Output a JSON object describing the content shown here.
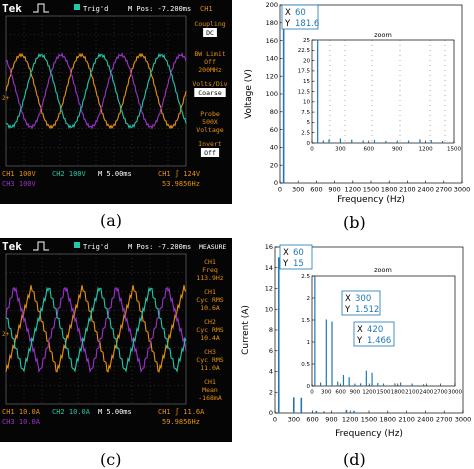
{
  "panels": {
    "a": {
      "caption": "(a)",
      "header": {
        "brand": "Tek",
        "status": "Trig'd",
        "mpos": "M Pos: -7.200ms",
        "channel": "CH1"
      },
      "side_menu": [
        {
          "label": "Coupling",
          "value": "DC"
        },
        {
          "label": "BW Limit",
          "value": "Off",
          "extra": "200MHz"
        },
        {
          "label": "Volts/Div",
          "value": "Coarse"
        },
        {
          "label": "Probe",
          "value": "500X",
          "extra": "Voltage"
        },
        {
          "label": "Invert",
          "value": "Off"
        }
      ],
      "footer": {
        "ch1": "CH1  100V",
        "ch2": "CH2  100V",
        "ch3": "CH3  100V",
        "time": "M 5.00ms",
        "trig": "CH1 ∫ 124V",
        "freq": "53.9856Hz"
      },
      "marker": "2+"
    },
    "b": {
      "caption": "(b)",
      "cursor": {
        "x_label": "X",
        "x_value": "60",
        "y_label": "Y",
        "y_value": "181.6"
      },
      "zoom_label": "zoom"
    },
    "c": {
      "caption": "(c)",
      "header": {
        "brand": "Tek",
        "status": "Trig'd",
        "mpos": "M Pos: -7.200ms",
        "title": "MEASURE"
      },
      "side_menu": [
        {
          "label": "CH1",
          "value": "Freq",
          "extra": "113.9Hz"
        },
        {
          "label": "CH1",
          "value": "Cyc RMS",
          "extra": "10.6A"
        },
        {
          "label": "CH2",
          "value": "Cyc RMS",
          "extra": "10.4A"
        },
        {
          "label": "CH3",
          "value": "Cyc RMS",
          "extra": "11.0A"
        },
        {
          "label": "CH1",
          "value": "Mean",
          "extra": "-168mA"
        }
      ],
      "footer": {
        "ch1": "CH1  10.0A",
        "ch2": "CH2  10.0A",
        "ch3": "CH3  10.0A",
        "time": "M 5.00ms",
        "trig": "CH1 ∫ 11.6A",
        "freq": "59.9856Hz"
      },
      "marker": "2+"
    },
    "d": {
      "caption": "(d)",
      "cursors": [
        {
          "x_label": "X",
          "x_value": "60",
          "y_label": "Y",
          "y_value": "15"
        },
        {
          "x_label": "X",
          "x_value": "300",
          "y_label": "Y",
          "y_value": "1.512"
        },
        {
          "x_label": "X",
          "x_value": "420",
          "y_label": "Y",
          "y_value": "1.466"
        }
      ],
      "zoom_label": "zoom"
    }
  },
  "colors": {
    "ch1": "#e8920f",
    "ch2": "#25c7a8",
    "ch3": "#9a33cc",
    "scope_bg": "#050505",
    "grid": "#555555",
    "bar": "#1f77b4",
    "menu": "#e8920f"
  },
  "chart_data": [
    {
      "type": "bar",
      "xlabel": "Frequency (Hz)",
      "ylabel": "Voltage (V)",
      "xlim": [
        0,
        3000
      ],
      "ylim": [
        0,
        200
      ],
      "xticks": [
        "0",
        "300",
        "600",
        "900",
        "1200",
        "1500",
        "1800",
        "2100",
        "2400",
        "2700",
        "3000"
      ],
      "yticks": [
        "0",
        "20",
        "40",
        "60",
        "80",
        "100",
        "120",
        "140",
        "160",
        "180",
        "200"
      ],
      "x": [
        60,
        180,
        300,
        420,
        540,
        660,
        780,
        1020,
        1140,
        1260,
        1380
      ],
      "values": [
        181.6,
        0.4,
        0.6,
        0.5,
        0.4,
        0.6,
        0.5,
        0.4,
        0.5,
        0.6,
        0.4
      ],
      "inset": {
        "label": "zoom",
        "xlim": [
          0,
          1500
        ],
        "ylim": [
          0,
          25
        ],
        "xticks": [
          "0",
          "300",
          "600",
          "900",
          "1200",
          "1500"
        ],
        "yticks": [
          "0",
          "2.5",
          "5",
          "7.5",
          "10",
          "12.5",
          "15",
          "17.5",
          "20",
          "22.5",
          "25"
        ],
        "x": [
          60,
          120,
          180,
          300,
          420,
          540,
          660,
          780,
          900,
          1020,
          1140,
          1260,
          1380
        ],
        "values": [
          25,
          0.6,
          0.9,
          1.1,
          0.8,
          0.6,
          0.7,
          0.5,
          0.4,
          0.6,
          0.9,
          0.7,
          0.5
        ]
      }
    },
    {
      "type": "bar",
      "xlabel": "Frequency (Hz)",
      "ylabel": "Current (A)",
      "xlim": [
        0,
        3000
      ],
      "ylim": [
        0,
        16
      ],
      "xticks": [
        "0",
        "300",
        "600",
        "900",
        "1200",
        "1500",
        "1800",
        "2100",
        "2400",
        "2700",
        "3000"
      ],
      "yticks": [
        "0",
        "2",
        "4",
        "6",
        "8",
        "10",
        "12",
        "14",
        "16"
      ],
      "x": [
        60,
        300,
        420,
        660,
        780,
        1140,
        1260
      ],
      "values": [
        15,
        1.512,
        1.466,
        0.2,
        0.15,
        0.3,
        0.2
      ],
      "inset": {
        "label": "zoom",
        "xlim": [
          0,
          3000
        ],
        "ylim": [
          0,
          2.5
        ],
        "xticks": [
          "0",
          "300",
          "600",
          "900",
          "1200",
          "1500",
          "1800",
          "2100",
          "2400",
          "2700",
          "3000"
        ],
        "yticks": [
          "0",
          "0.5",
          "1",
          "1.5",
          "2",
          "2.5"
        ],
        "x": [
          60,
          180,
          300,
          420,
          540,
          660,
          780,
          900,
          1020,
          1140,
          1260,
          1380,
          1500,
          1740,
          1860,
          2100,
          2340
        ],
        "values": [
          2.5,
          0.08,
          1.512,
          1.466,
          0.1,
          0.25,
          0.2,
          0.05,
          0.06,
          0.35,
          0.3,
          0.07,
          0.05,
          0.06,
          0.08,
          0.05,
          0.04
        ]
      }
    }
  ]
}
